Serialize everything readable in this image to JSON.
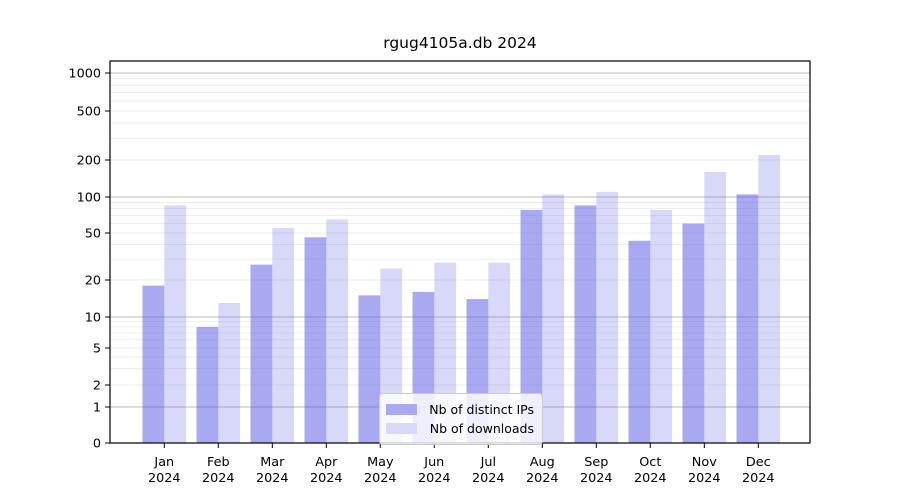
{
  "chart_data": {
    "type": "bar",
    "title": "rgug4105a.db 2024",
    "categories": [
      "Jan",
      "Feb",
      "Mar",
      "Apr",
      "May",
      "Jun",
      "Jul",
      "Aug",
      "Sep",
      "Oct",
      "Nov",
      "Dec"
    ],
    "year_label": "2024",
    "series": [
      {
        "name": "Nb of distinct IPs",
        "color": "#a9a9f2",
        "values": [
          18,
          8,
          27,
          46,
          15,
          16,
          14,
          78,
          85,
          43,
          60,
          105
        ]
      },
      {
        "name": "Nb of downloads",
        "color": "#d8d8f7",
        "values": [
          85,
          13,
          55,
          65,
          25,
          28,
          28,
          105,
          110,
          78,
          160,
          220
        ]
      }
    ],
    "yscale": "log-like (0,1,2,5,10,20,50,100,200,500,1000)",
    "yticks": [
      0,
      1,
      2,
      5,
      10,
      20,
      50,
      100,
      200,
      500,
      1000
    ],
    "ylim": [
      0,
      1000
    ],
    "grid": true,
    "legend_position": "lower center",
    "xlabel": "",
    "ylabel": ""
  },
  "colors": {
    "bar_base": "#5b5be6",
    "bar_ips_opacity": 0.52,
    "bar_downloads_opacity": 0.235,
    "grid_major": "#bbbbbb",
    "grid_minor": "#ececec",
    "spine": "#000000",
    "text": "#000000",
    "legend_border": "#cccccc"
  }
}
